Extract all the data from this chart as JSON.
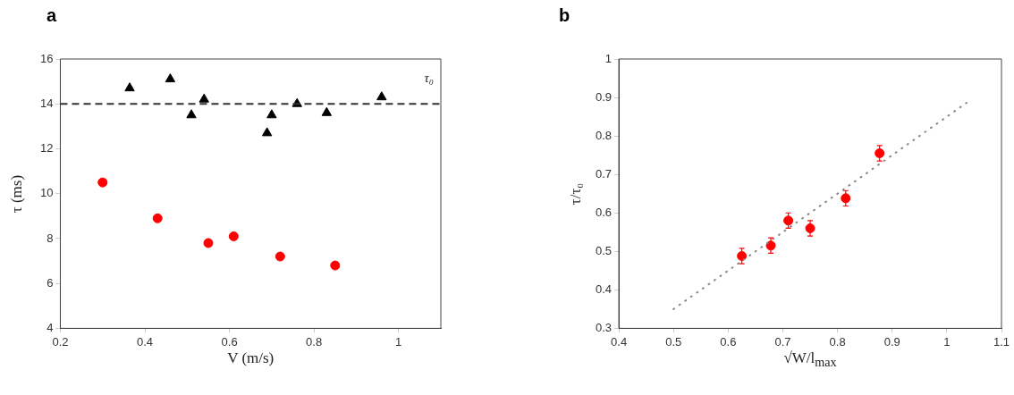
{
  "chart_data": [
    {
      "type": "scatter",
      "title": "a",
      "xlabel": "V (m/s)",
      "ylabel": "τ (ms)",
      "xlim": [
        0.2,
        1.1
      ],
      "xticks": [
        0.2,
        0.4,
        0.6,
        0.8,
        1
      ],
      "ylim": [
        4,
        16
      ],
      "yticks": [
        4,
        6,
        8,
        10,
        12,
        14,
        16
      ],
      "grid": false,
      "legend": false,
      "series": [
        {
          "color": "#000000",
          "marker": "triangle",
          "x": [
            0.364,
            0.46,
            0.51,
            0.54,
            0.689,
            0.7,
            0.76,
            0.83,
            0.96
          ],
          "values": [
            14.7,
            15.1,
            13.5,
            14.2,
            12.7,
            13.5,
            14.0,
            13.6,
            14.3
          ]
        },
        {
          "color": "#ff0000",
          "marker": "circle",
          "x": [
            0.3,
            0.43,
            0.55,
            0.61,
            0.72,
            0.85
          ],
          "values": [
            10.5,
            8.9,
            7.8,
            8.1,
            7.2,
            6.8
          ]
        }
      ],
      "ref_lines": [
        {
          "axis": "y",
          "value": 14,
          "label": "τ₀",
          "color": "#333333",
          "line_style": "dashed"
        }
      ]
    },
    {
      "type": "scatter",
      "title": "b",
      "xlabel": "√W/l$_{max}$",
      "ylabel": "τ/τ₀",
      "xlim": [
        0.4,
        1.1
      ],
      "xticks": [
        0.4,
        0.5,
        0.6,
        0.7,
        0.8,
        0.9,
        1,
        1.1
      ],
      "ylim": [
        0.3,
        1
      ],
      "yticks": [
        0.3,
        0.4,
        0.5,
        0.6,
        0.7,
        0.8,
        0.9,
        1
      ],
      "grid": false,
      "legend": false,
      "series": [
        {
          "type": "line",
          "color": "#888888",
          "line_style": "dotted",
          "marker": "none",
          "x": [
            0.5,
            1.04
          ],
          "values": [
            0.35,
            0.89
          ]
        },
        {
          "color": "#ff0000",
          "marker": "circle",
          "x": [
            0.625,
            0.678,
            0.71,
            0.75,
            0.815,
            0.877
          ],
          "values": [
            0.488,
            0.515,
            0.58,
            0.56,
            0.638,
            0.755
          ],
          "errors": [
            0.02,
            0.02,
            0.02,
            0.02,
            0.02,
            0.02
          ]
        }
      ]
    }
  ]
}
